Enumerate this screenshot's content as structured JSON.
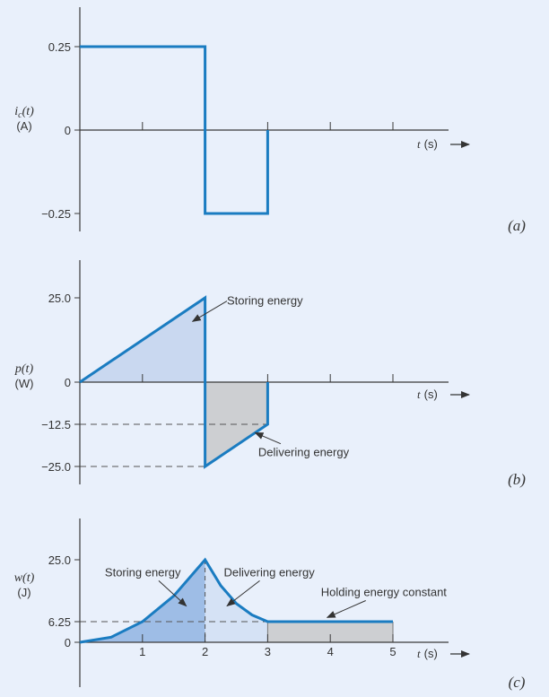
{
  "colors": {
    "background": "#e9f0fb",
    "line": "#1a7cc1",
    "fill_storing": "#c9d8f0",
    "fill_storing_w": "#9ebde6",
    "fill_delivering_w": "#d5e2f5",
    "fill_gray": "#cdcfd2",
    "axis": "#3a3a3a"
  },
  "chart_data": [
    {
      "type": "line",
      "panel_label": "(a)",
      "ylabel_main": "i",
      "ylabel_sub": "c",
      "ylabel_arg": "(t)",
      "yunit": "(A)",
      "xlabel_var": "t",
      "xlabel_unit": "(s)",
      "ytick_labels": [
        "0.25",
        "0",
        "−0.25"
      ],
      "ytick_values": [
        0.25,
        0,
        -0.25
      ],
      "xticks": [
        1,
        2,
        3,
        4,
        5
      ],
      "xlim": [
        0,
        5.9
      ],
      "ylim": [
        -0.34,
        0.38
      ],
      "x": [
        0,
        2,
        2,
        3,
        3
      ],
      "y": [
        0.25,
        0.25,
        -0.25,
        -0.25,
        0
      ],
      "annotations": []
    },
    {
      "type": "area",
      "panel_label": "(b)",
      "ylabel_main": "p(t)",
      "yunit": "(W)",
      "xlabel_var": "t",
      "xlabel_unit": "(s)",
      "ytick_labels": [
        "25.0",
        "0",
        "−12.5",
        "−25.0"
      ],
      "ytick_values": [
        25,
        0,
        -12.5,
        -25
      ],
      "dashed_levels": [
        -12.5,
        -25
      ],
      "xticks": [
        1,
        2,
        3,
        4,
        5
      ],
      "xlim": [
        0,
        5.9
      ],
      "ylim": [
        -32,
        35
      ],
      "x": [
        0,
        2,
        2,
        3,
        3
      ],
      "y": [
        0,
        25,
        -25,
        -12.5,
        0
      ],
      "annotations": [
        {
          "text": "Storing energy",
          "x": 2.35,
          "y": 23,
          "ax": 1.8,
          "ay": 18
        },
        {
          "text": "Delivering energy",
          "x": 2.85,
          "y": -22,
          "ax": 2.8,
          "ay": -15
        }
      ]
    },
    {
      "type": "area",
      "panel_label": "(c)",
      "ylabel_main": "w(t)",
      "yunit": "(J)",
      "xlabel_var": "t",
      "xlabel_unit": "(s)",
      "ytick_labels": [
        "25.0",
        "6.25",
        "0"
      ],
      "ytick_values": [
        25,
        6.25,
        0
      ],
      "dashed_levels": [
        6.25
      ],
      "xticks": [
        1,
        2,
        3,
        4,
        5
      ],
      "xtick_labels": [
        "1",
        "2",
        "3",
        "4",
        "5"
      ],
      "xlim": [
        0,
        5.9
      ],
      "ylim": [
        -5,
        33
      ],
      "x": [
        0,
        0.5,
        1,
        1.5,
        2,
        2.25,
        2.5,
        2.75,
        3,
        5
      ],
      "y": [
        0,
        1.56,
        6.25,
        14.06,
        25,
        17.2,
        11.7,
        8.3,
        6.25,
        6.25
      ],
      "annotations": [
        {
          "text": "Storing energy",
          "x": 0.4,
          "y": 20,
          "ax": 1.7,
          "ay": 11
        },
        {
          "text": "Delivering energy",
          "x": 2.3,
          "y": 20,
          "ax": 2.35,
          "ay": 11
        },
        {
          "text": "Holding energy constant",
          "x": 3.85,
          "y": 14,
          "ax": 3.95,
          "ay": 7.5
        }
      ]
    }
  ]
}
